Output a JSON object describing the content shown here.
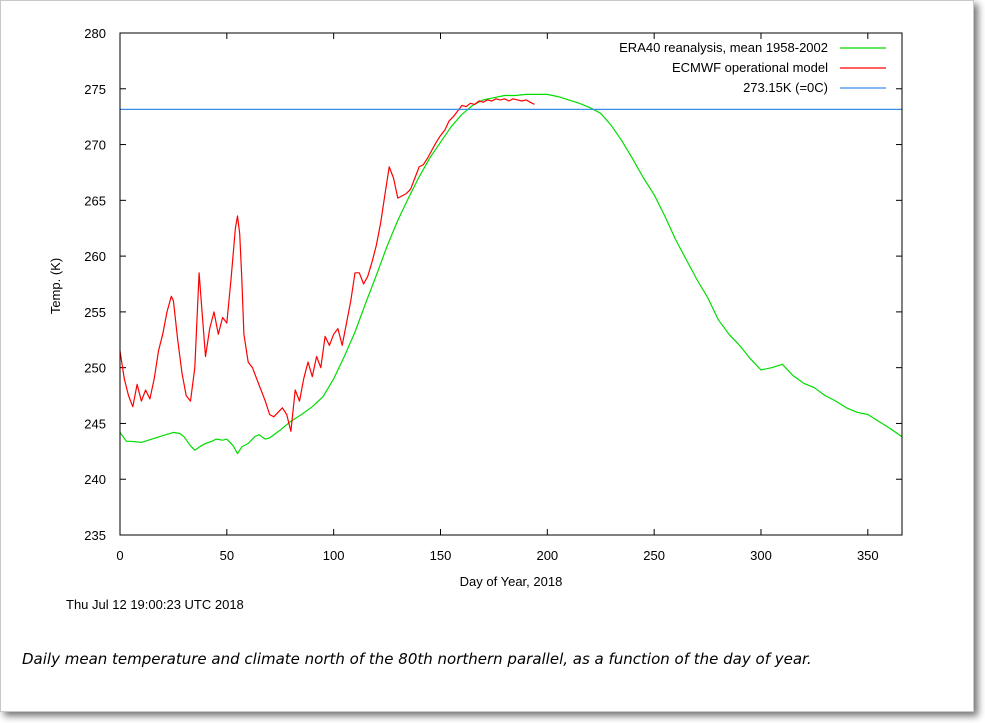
{
  "caption": "Daily mean temperature and climate north of the 80th northern parallel, as a function of the day of year.",
  "timestamp": "Thu Jul 12 19:00:23 UTC 2018",
  "chart_data": {
    "type": "line",
    "xlabel": "Day of Year, 2018",
    "ylabel": "Temp. (K)",
    "xlim": [
      0,
      366
    ],
    "ylim": [
      235,
      280
    ],
    "xticks": [
      0,
      50,
      100,
      150,
      200,
      250,
      300,
      350
    ],
    "yticks": [
      235,
      240,
      245,
      250,
      255,
      260,
      265,
      270,
      275,
      280
    ],
    "grid": false,
    "legend_position": "top-right",
    "series": [
      {
        "name": "ERA40 reanalysis, mean 1958-2002",
        "color": "#00dd00",
        "x": [
          0,
          3,
          5,
          10,
          15,
          20,
          25,
          28,
          30,
          33,
          35,
          38,
          40,
          43,
          45,
          48,
          50,
          53,
          55,
          57,
          60,
          63,
          65,
          68,
          70,
          75,
          80,
          85,
          90,
          95,
          100,
          105,
          110,
          115,
          120,
          125,
          130,
          135,
          140,
          145,
          150,
          155,
          160,
          165,
          170,
          175,
          180,
          185,
          190,
          195,
          200,
          205,
          210,
          215,
          220,
          225,
          230,
          235,
          240,
          245,
          250,
          255,
          260,
          265,
          270,
          275,
          280,
          285,
          290,
          295,
          300,
          305,
          310,
          315,
          320,
          325,
          330,
          335,
          340,
          345,
          350,
          355,
          360,
          366
        ],
        "values": [
          244.2,
          243.4,
          243.4,
          243.3,
          243.6,
          243.9,
          244.2,
          244.1,
          243.8,
          243.0,
          242.6,
          243.0,
          243.2,
          243.4,
          243.6,
          243.5,
          243.6,
          243.0,
          242.3,
          242.9,
          243.2,
          243.8,
          244.0,
          243.6,
          243.7,
          244.4,
          245.2,
          245.8,
          246.5,
          247.4,
          249.0,
          251.0,
          253.2,
          255.8,
          258.3,
          260.9,
          263.2,
          265.2,
          267.1,
          268.8,
          270.2,
          271.6,
          272.7,
          273.5,
          274.0,
          274.2,
          274.4,
          274.4,
          274.5,
          274.5,
          274.5,
          274.3,
          274.0,
          273.7,
          273.3,
          272.8,
          271.7,
          270.3,
          268.7,
          267.0,
          265.5,
          263.6,
          261.5,
          259.7,
          257.9,
          256.3,
          254.3,
          253.0,
          252.0,
          250.8,
          249.8,
          250.0,
          250.3,
          249.3,
          248.6,
          248.2,
          247.5,
          247.0,
          246.4,
          246.0,
          245.8,
          245.2,
          244.6,
          243.8
        ]
      },
      {
        "name": "ECMWF operational model",
        "color": "#ff0000",
        "x": [
          0,
          2,
          4,
          6,
          8,
          10,
          12,
          14,
          16,
          18,
          20,
          22,
          24,
          25,
          27,
          29,
          31,
          33,
          35,
          37,
          38,
          40,
          42,
          44,
          46,
          48,
          50,
          52,
          54,
          55,
          56,
          57,
          58,
          60,
          62,
          64,
          66,
          68,
          70,
          72,
          74,
          76,
          78,
          80,
          82,
          84,
          86,
          88,
          90,
          92,
          94,
          96,
          98,
          100,
          102,
          104,
          106,
          108,
          110,
          112,
          114,
          116,
          118,
          120,
          122,
          124,
          126,
          128,
          130,
          132,
          134,
          136,
          138,
          140,
          142,
          144,
          146,
          148,
          150,
          152,
          154,
          156,
          158,
          160,
          162,
          164,
          166,
          168,
          170,
          172,
          174,
          176,
          178,
          180,
          182,
          184,
          186,
          188,
          190,
          192,
          194
        ],
        "values": [
          251.5,
          249.0,
          247.5,
          246.5,
          248.5,
          247.0,
          248.0,
          247.2,
          249.0,
          251.5,
          253.0,
          255.0,
          256.4,
          256.0,
          252.5,
          249.5,
          247.5,
          247.0,
          250.0,
          258.5,
          256.0,
          251.0,
          253.5,
          255.0,
          253.0,
          254.5,
          254.0,
          258.0,
          262.5,
          263.6,
          262.0,
          258.0,
          253.0,
          250.5,
          250.0,
          249.0,
          248.0,
          247.0,
          245.8,
          245.6,
          246.0,
          246.4,
          245.8,
          244.3,
          248.0,
          247.0,
          249.0,
          250.5,
          249.2,
          251.0,
          250.0,
          252.8,
          252.0,
          253.0,
          253.5,
          252.0,
          254.0,
          256.0,
          258.5,
          258.5,
          257.5,
          258.2,
          259.5,
          261.0,
          263.0,
          265.5,
          268.0,
          267.0,
          265.2,
          265.4,
          265.6,
          266.0,
          267.0,
          268.0,
          268.2,
          268.8,
          269.5,
          270.2,
          270.8,
          271.3,
          272.1,
          272.5,
          273.0,
          273.5,
          273.4,
          273.7,
          273.6,
          273.9,
          273.8,
          274.0,
          273.9,
          274.1,
          274.0,
          274.1,
          273.9,
          274.1,
          274.0,
          273.9,
          274.0,
          273.8,
          273.6
        ]
      },
      {
        "name": "273.15K (=0C)",
        "color": "#3a8ee6",
        "x": [
          0,
          366
        ],
        "values": [
          273.15,
          273.15
        ]
      }
    ]
  }
}
